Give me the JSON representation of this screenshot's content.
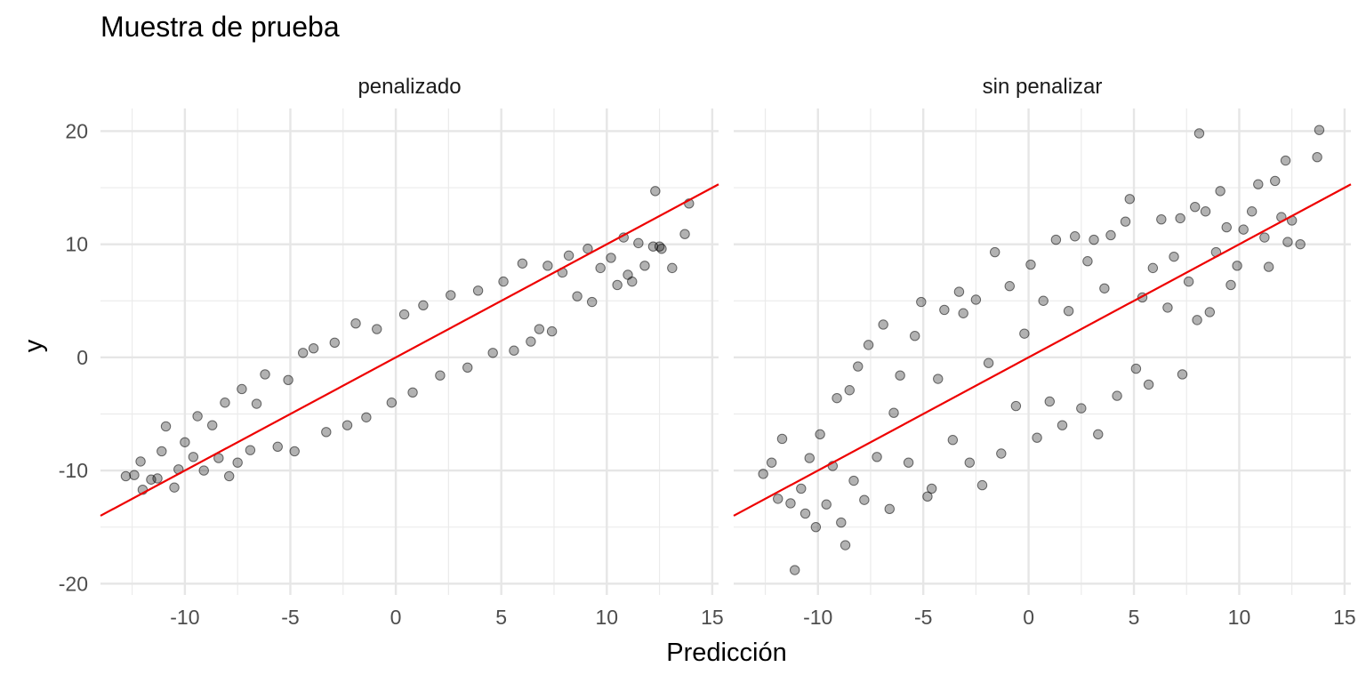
{
  "chart_data": {
    "type": "scatter",
    "title": "Muestra de prueba",
    "xlabel": "Predicción",
    "ylabel": "y",
    "xlim": [
      -14,
      15.3
    ],
    "ylim": [
      -21,
      22
    ],
    "x_ticks": [
      -10,
      -5,
      0,
      5,
      10,
      15
    ],
    "x_tick_labels": [
      "-10",
      "-5",
      "0",
      "5",
      "10",
      "15"
    ],
    "y_ticks": [
      -20,
      -10,
      0,
      10,
      20
    ],
    "y_tick_labels": [
      "-20",
      "-10",
      "0",
      "10",
      "20"
    ],
    "grid": true,
    "point_color": "#000000",
    "point_opacity": 0.3,
    "reference_line": {
      "slope": 1,
      "intercept": 0,
      "color": "#ee0000"
    },
    "facets": [
      {
        "label": "penalizado",
        "points": [
          [
            -12.8,
            -10.5
          ],
          [
            -12.4,
            -10.4
          ],
          [
            -12.1,
            -9.2
          ],
          [
            -12.0,
            -11.7
          ],
          [
            -11.6,
            -10.8
          ],
          [
            -11.3,
            -10.7
          ],
          [
            -11.1,
            -8.3
          ],
          [
            -10.9,
            -6.1
          ],
          [
            -10.5,
            -11.5
          ],
          [
            -10.3,
            -9.9
          ],
          [
            -10.0,
            -7.5
          ],
          [
            -9.6,
            -8.8
          ],
          [
            -9.4,
            -5.2
          ],
          [
            -9.1,
            -10.0
          ],
          [
            -8.7,
            -6.0
          ],
          [
            -8.4,
            -8.9
          ],
          [
            -8.1,
            -4.0
          ],
          [
            -7.9,
            -10.5
          ],
          [
            -7.5,
            -9.3
          ],
          [
            -7.3,
            -2.8
          ],
          [
            -6.9,
            -8.2
          ],
          [
            -6.6,
            -4.1
          ],
          [
            -6.2,
            -1.5
          ],
          [
            -5.6,
            -7.9
          ],
          [
            -5.1,
            -2.0
          ],
          [
            -4.8,
            -8.3
          ],
          [
            -4.4,
            0.4
          ],
          [
            -3.9,
            0.8
          ],
          [
            -3.3,
            -6.6
          ],
          [
            -2.9,
            1.3
          ],
          [
            -2.3,
            -6.0
          ],
          [
            -1.9,
            3.0
          ],
          [
            -1.4,
            -5.3
          ],
          [
            -0.9,
            2.5
          ],
          [
            -0.2,
            -4.0
          ],
          [
            0.4,
            3.8
          ],
          [
            0.8,
            -3.1
          ],
          [
            1.3,
            4.6
          ],
          [
            2.1,
            -1.6
          ],
          [
            2.6,
            5.5
          ],
          [
            3.4,
            -0.9
          ],
          [
            3.9,
            5.9
          ],
          [
            4.6,
            0.4
          ],
          [
            5.1,
            6.7
          ],
          [
            5.6,
            0.6
          ],
          [
            6.0,
            8.3
          ],
          [
            6.4,
            1.4
          ],
          [
            6.8,
            2.5
          ],
          [
            7.2,
            8.1
          ],
          [
            7.4,
            2.3
          ],
          [
            7.9,
            7.5
          ],
          [
            8.2,
            9.0
          ],
          [
            8.6,
            5.4
          ],
          [
            9.1,
            9.6
          ],
          [
            9.3,
            4.9
          ],
          [
            9.7,
            7.9
          ],
          [
            10.2,
            8.8
          ],
          [
            10.5,
            6.4
          ],
          [
            10.8,
            10.6
          ],
          [
            11.0,
            7.3
          ],
          [
            11.2,
            6.7
          ],
          [
            11.5,
            10.1
          ],
          [
            11.8,
            8.1
          ],
          [
            12.2,
            9.8
          ],
          [
            12.3,
            14.7
          ],
          [
            12.5,
            9.8
          ],
          [
            12.6,
            9.6
          ],
          [
            13.1,
            7.9
          ],
          [
            13.7,
            10.9
          ],
          [
            13.9,
            13.6
          ]
        ]
      },
      {
        "label": "sin penalizar",
        "points": [
          [
            -12.6,
            -10.3
          ],
          [
            -12.2,
            -9.3
          ],
          [
            -11.9,
            -12.5
          ],
          [
            -11.7,
            -7.2
          ],
          [
            -11.3,
            -12.9
          ],
          [
            -11.1,
            -18.8
          ],
          [
            -10.8,
            -11.6
          ],
          [
            -10.6,
            -13.8
          ],
          [
            -10.4,
            -8.9
          ],
          [
            -10.1,
            -15.0
          ],
          [
            -9.9,
            -6.8
          ],
          [
            -9.6,
            -13.0
          ],
          [
            -9.3,
            -9.6
          ],
          [
            -9.1,
            -3.6
          ],
          [
            -8.9,
            -14.6
          ],
          [
            -8.7,
            -16.6
          ],
          [
            -8.5,
            -2.9
          ],
          [
            -8.3,
            -10.9
          ],
          [
            -8.1,
            -0.8
          ],
          [
            -7.8,
            -12.6
          ],
          [
            -7.6,
            1.1
          ],
          [
            -7.2,
            -8.8
          ],
          [
            -6.9,
            2.9
          ],
          [
            -6.6,
            -13.4
          ],
          [
            -6.4,
            -4.9
          ],
          [
            -6.1,
            -1.6
          ],
          [
            -5.7,
            -9.3
          ],
          [
            -5.4,
            1.9
          ],
          [
            -5.1,
            4.9
          ],
          [
            -4.8,
            -12.3
          ],
          [
            -4.6,
            -11.6
          ],
          [
            -4.3,
            -1.9
          ],
          [
            -4.0,
            4.2
          ],
          [
            -3.6,
            -7.3
          ],
          [
            -3.3,
            5.8
          ],
          [
            -3.1,
            3.9
          ],
          [
            -2.8,
            -9.3
          ],
          [
            -2.5,
            5.1
          ],
          [
            -2.2,
            -11.3
          ],
          [
            -1.9,
            -0.5
          ],
          [
            -1.6,
            9.3
          ],
          [
            -1.3,
            -8.5
          ],
          [
            -0.9,
            6.3
          ],
          [
            -0.6,
            -4.3
          ],
          [
            -0.2,
            2.1
          ],
          [
            0.1,
            8.2
          ],
          [
            0.4,
            -7.1
          ],
          [
            0.7,
            5.0
          ],
          [
            1.0,
            -3.9
          ],
          [
            1.3,
            10.4
          ],
          [
            1.6,
            -6.0
          ],
          [
            1.9,
            4.1
          ],
          [
            2.2,
            10.7
          ],
          [
            2.5,
            -4.5
          ],
          [
            2.8,
            8.5
          ],
          [
            3.1,
            10.4
          ],
          [
            3.3,
            -6.8
          ],
          [
            3.6,
            6.1
          ],
          [
            3.9,
            10.8
          ],
          [
            4.2,
            -3.4
          ],
          [
            4.6,
            12.0
          ],
          [
            4.8,
            14.0
          ],
          [
            5.1,
            -1.0
          ],
          [
            5.4,
            5.3
          ],
          [
            5.7,
            -2.4
          ],
          [
            5.9,
            7.9
          ],
          [
            6.3,
            12.2
          ],
          [
            6.6,
            4.4
          ],
          [
            6.9,
            8.9
          ],
          [
            7.2,
            12.3
          ],
          [
            7.3,
            -1.5
          ],
          [
            7.6,
            6.7
          ],
          [
            7.9,
            13.3
          ],
          [
            8.0,
            3.3
          ],
          [
            8.1,
            19.8
          ],
          [
            8.4,
            12.9
          ],
          [
            8.6,
            4.0
          ],
          [
            8.9,
            9.3
          ],
          [
            9.1,
            14.7
          ],
          [
            9.4,
            11.5
          ],
          [
            9.6,
            6.4
          ],
          [
            9.9,
            8.1
          ],
          [
            10.2,
            11.3
          ],
          [
            10.6,
            12.9
          ],
          [
            10.9,
            15.3
          ],
          [
            11.2,
            10.6
          ],
          [
            11.4,
            8.0
          ],
          [
            11.7,
            15.6
          ],
          [
            12.0,
            12.4
          ],
          [
            12.2,
            17.4
          ],
          [
            12.3,
            10.2
          ],
          [
            12.5,
            12.1
          ],
          [
            12.9,
            10.0
          ],
          [
            13.7,
            17.7
          ],
          [
            13.8,
            20.1
          ]
        ]
      }
    ]
  }
}
